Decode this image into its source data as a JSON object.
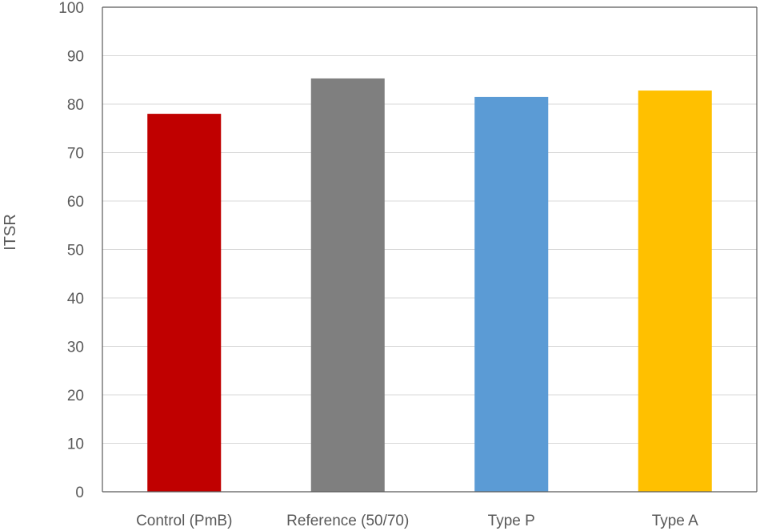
{
  "chart_data": {
    "type": "bar",
    "title": "",
    "xlabel": "",
    "ylabel": "ITSR",
    "ylim": [
      0,
      100
    ],
    "yticks": [
      0,
      10,
      20,
      30,
      40,
      50,
      60,
      70,
      80,
      90,
      100
    ],
    "grid": true,
    "legend": "none",
    "categories": [
      "Control (PmB)",
      "Reference (50/70)",
      "Type P",
      "Type A"
    ],
    "values": [
      78,
      85.3,
      81.5,
      82.8
    ],
    "colors": [
      "#c00000",
      "#7f7f7f",
      "#5b9bd5",
      "#ffc000"
    ]
  }
}
